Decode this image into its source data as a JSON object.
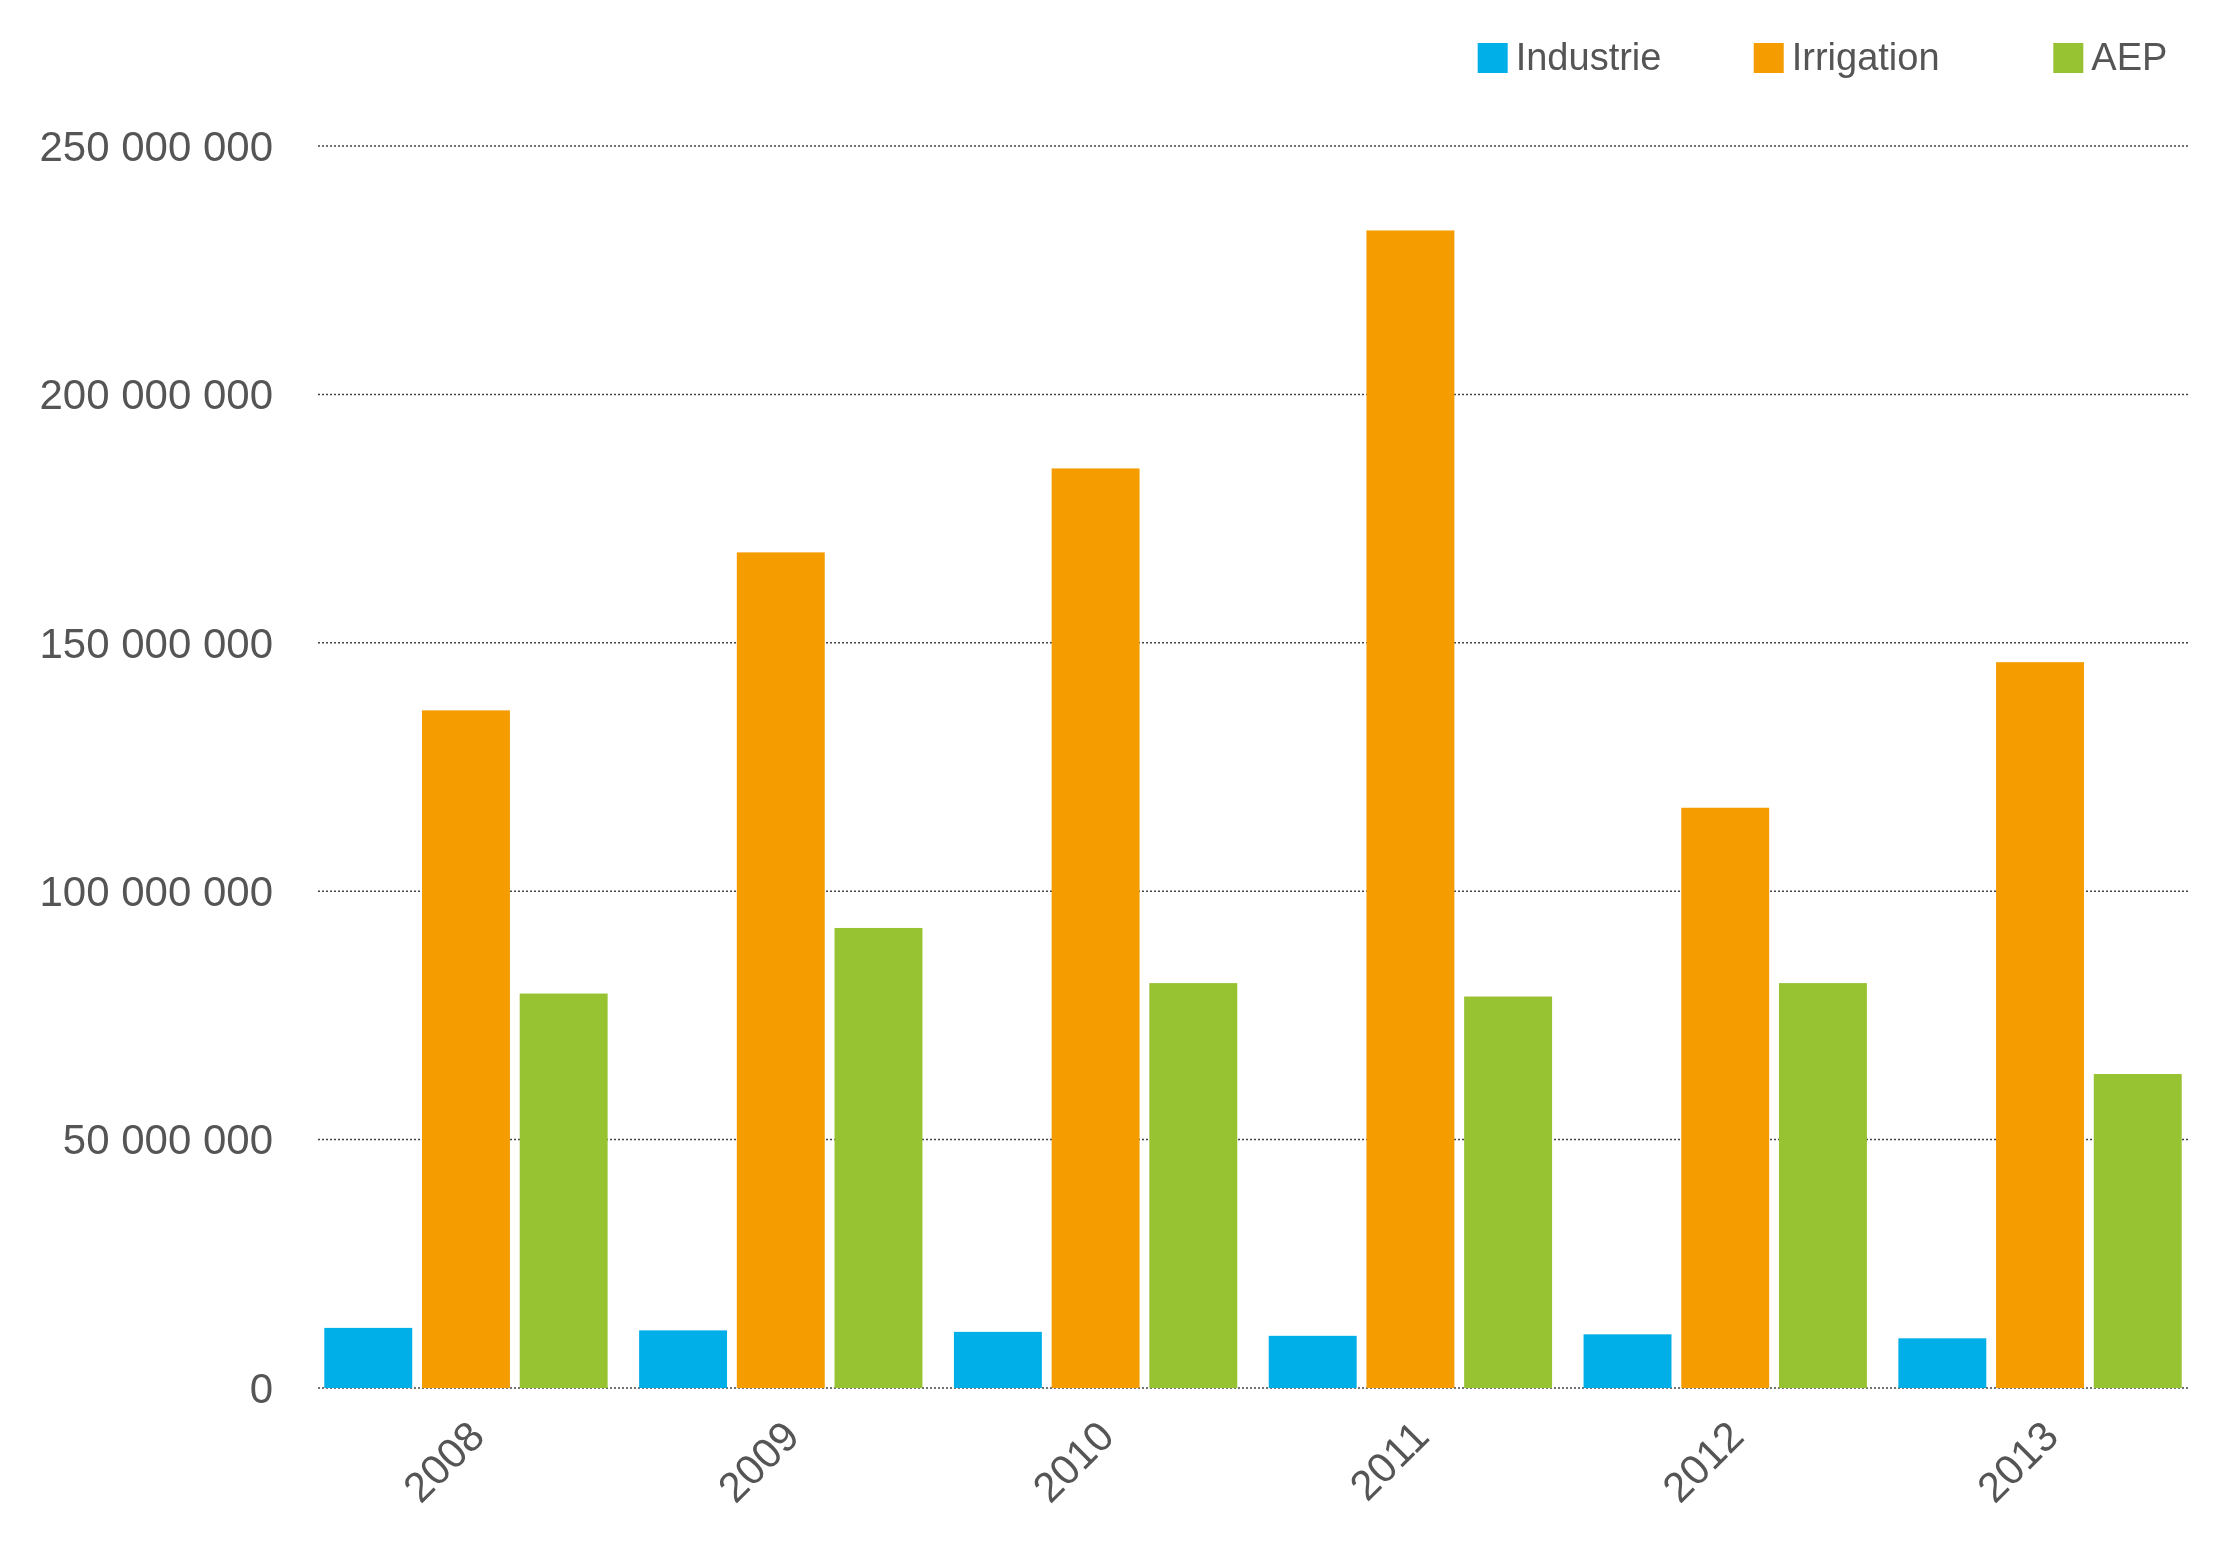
{
  "chart_data": {
    "type": "bar",
    "categories": [
      "2008",
      "2009",
      "2010",
      "2011",
      "2012",
      "2013"
    ],
    "series": [
      {
        "name": "Industrie",
        "color": "#00aee8",
        "values": [
          12100000,
          11600000,
          11300000,
          10500000,
          10800000,
          10000000
        ]
      },
      {
        "name": "Irrigation",
        "color": "#f59c00",
        "values": [
          136400000,
          168200000,
          185100000,
          233000000,
          116800000,
          146100000
        ]
      },
      {
        "name": "AEP",
        "color": "#97c232",
        "values": [
          79400000,
          92600000,
          81500000,
          78800000,
          81500000,
          63200000
        ]
      }
    ],
    "ylim": [
      0,
      250000000
    ],
    "yticks": [
      {
        "value": 0,
        "label": "0"
      },
      {
        "value": 50000000,
        "label": "50 000 000"
      },
      {
        "value": 100000000,
        "label": "100 000 000"
      },
      {
        "value": 150000000,
        "label": "150 000 000"
      },
      {
        "value": 200000000,
        "label": "200 000 000"
      },
      {
        "value": 250000000,
        "label": "250 000 000"
      }
    ],
    "grid": "y",
    "legend": "top right"
  }
}
